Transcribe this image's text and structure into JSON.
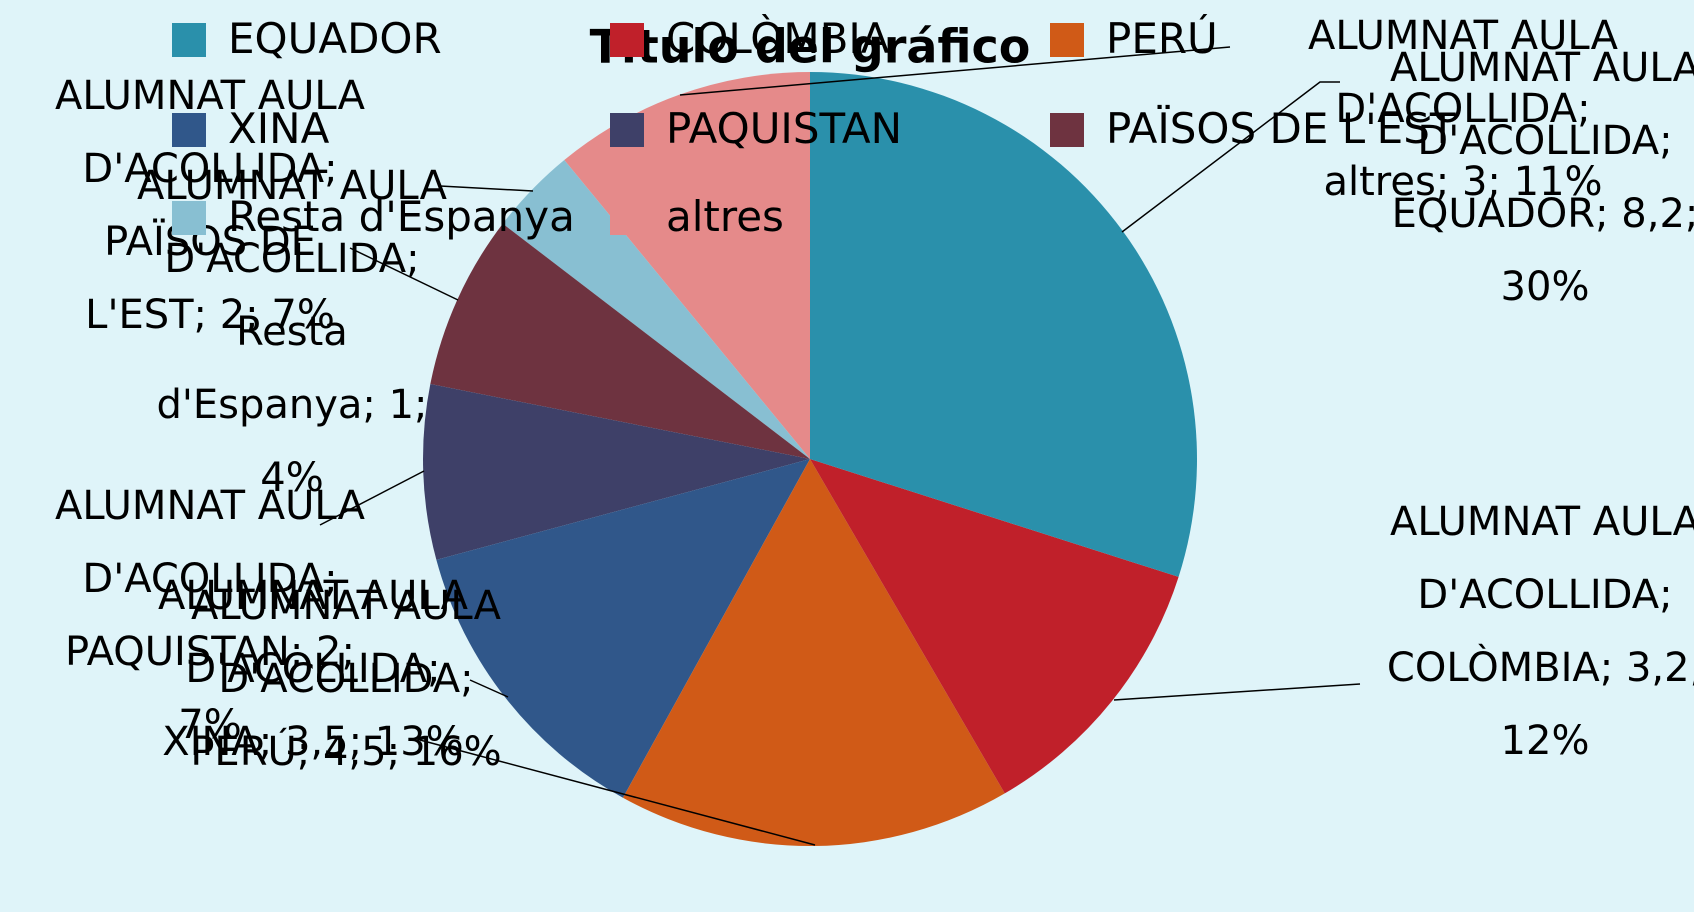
{
  "chart_data": {
    "type": "pie",
    "title": "Título del gráfico",
    "series_name": "ALUMNAT AULA D'ACOLLIDA",
    "categories": [
      "EQUADOR",
      "COLÒMBIA",
      "PERÚ",
      "XINA",
      "PAQUISTAN",
      "PAÏSOS DE L'EST",
      "Resta d'Espanya",
      "altres"
    ],
    "values": [
      8.2,
      3.2,
      4.5,
      3.5,
      2,
      2,
      1,
      3
    ],
    "value_labels": [
      "ALUMNAT AULA D'ACOLLIDA; EQUADOR; 8,2; 30%",
      "ALUMNAT AULA D'ACOLLIDA; COLÒMBIA; 3,2; 12%",
      "ALUMNAT AULA D'ACOLLIDA; PERÚ; 4,5; 16%",
      "ALUMNAT AULA D'ACOLLIDA; XINA; 3,5; 13%",
      "ALUMNAT AULA D'ACOLLIDA; PAQUISTAN; 2; 7%",
      "ALUMNAT AULA D'ACOLLIDA; PAÏSOS DE L'EST; 2; 7%",
      "ALUMNAT AULA D'ACOLLIDA; Resta d'Espanya; 1; 4%",
      "ALUMNAT AULA D'ACOLLIDA; altres; 3; 11%"
    ],
    "colors": [
      "#2a90ab",
      "#c0202a",
      "#d05a17",
      "#30578a",
      "#3e4068",
      "#6e3340",
      "#88bfd2",
      "#e58a8a"
    ],
    "legend": "top"
  }
}
